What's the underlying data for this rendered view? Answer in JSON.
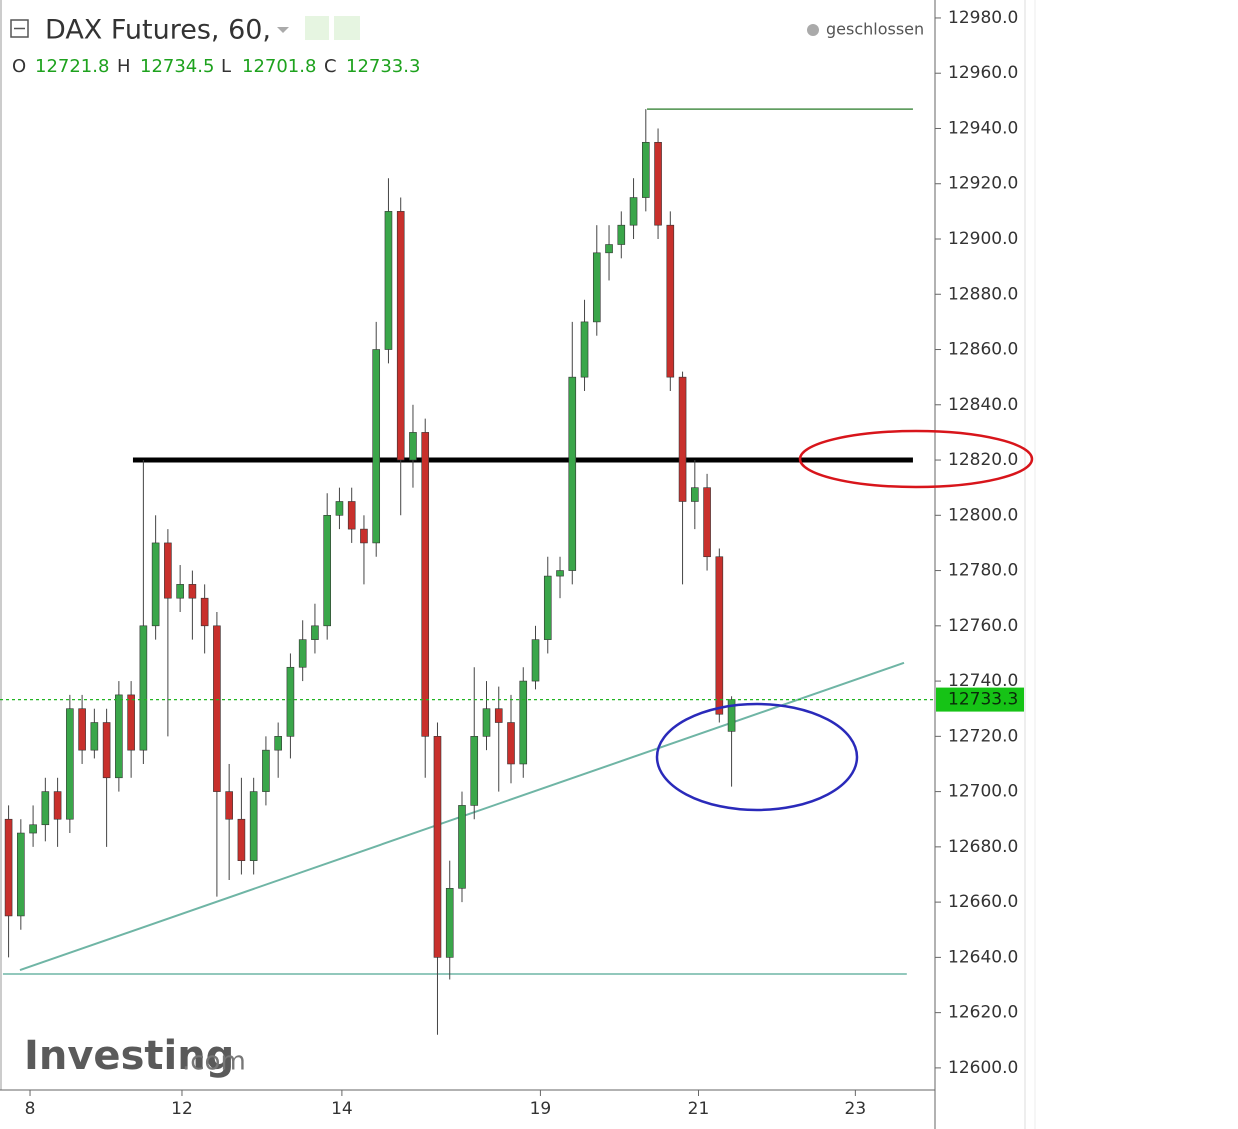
{
  "chart_data": {
    "type": "candlestick",
    "title": "DAX Futures, 60,",
    "status": "geschlossen",
    "watermark": [
      "Investing",
      ".com"
    ],
    "ohlc_labels": [
      "O",
      "H",
      "L",
      "C"
    ],
    "up_color": "#3aa64a",
    "down_color": "#c8302c",
    "x": [
      0,
      1,
      2,
      3,
      4,
      5,
      6,
      7,
      8,
      9,
      10,
      11,
      12,
      13,
      14,
      15,
      16,
      17,
      18,
      19,
      20,
      21,
      22,
      23,
      24,
      25,
      26,
      27,
      28,
      29,
      30,
      31,
      32,
      33,
      34,
      35,
      36,
      37,
      38,
      39,
      40,
      41,
      42,
      43,
      44,
      45,
      46,
      47,
      48,
      49,
      50,
      51,
      52,
      53,
      54,
      55,
      56,
      57,
      58,
      59
    ],
    "open": [
      12690,
      12655,
      12685,
      12688,
      12700,
      12690,
      12730,
      12715,
      12725,
      12705,
      12735,
      12715,
      12760,
      12790,
      12770,
      12775,
      12770,
      12760,
      12700,
      12690,
      12675,
      12700,
      12715,
      12720,
      12745,
      12755,
      12760,
      12800,
      12805,
      12795,
      12790,
      12860,
      12910,
      12820,
      12830,
      12720,
      12640,
      12665,
      12695,
      12720,
      12730,
      12725,
      12710,
      12740,
      12755,
      12778,
      12780,
      12850,
      12870,
      12895,
      12898,
      12905,
      12915,
      12935,
      12905,
      12850,
      12805,
      12810,
      12785,
      12721.8
    ],
    "high": [
      12695,
      12690,
      12695,
      12705,
      12705,
      12735,
      12735,
      12730,
      12730,
      12740,
      12740,
      12820,
      12800,
      12795,
      12782,
      12780,
      12775,
      12765,
      12710,
      12705,
      12705,
      12720,
      12725,
      12750,
      12762,
      12768,
      12808,
      12810,
      12810,
      12800,
      12870,
      12922,
      12915,
      12840,
      12835,
      12725,
      12675,
      12700,
      12745,
      12740,
      12738,
      12735,
      12745,
      12760,
      12785,
      12785,
      12870,
      12878,
      12905,
      12905,
      12910,
      12922,
      12947,
      12940,
      12910,
      12852,
      12820,
      12815,
      12788,
      12734.5
    ],
    "low": [
      12640,
      12650,
      12680,
      12682,
      12680,
      12685,
      12710,
      12712,
      12680,
      12700,
      12705,
      12710,
      12755,
      12720,
      12765,
      12755,
      12750,
      12662,
      12668,
      12670,
      12670,
      12695,
      12705,
      12712,
      12740,
      12750,
      12755,
      12795,
      12790,
      12775,
      12785,
      12855,
      12800,
      12810,
      12705,
      12612,
      12632,
      12660,
      12690,
      12715,
      12700,
      12703,
      12705,
      12737,
      12750,
      12770,
      12775,
      12845,
      12865,
      12885,
      12893,
      12900,
      12910,
      12900,
      12845,
      12775,
      12795,
      12780,
      12725,
      12701.8
    ],
    "close": [
      12655,
      12685,
      12688,
      12700,
      12690,
      12730,
      12715,
      12725,
      12705,
      12735,
      12715,
      12760,
      12790,
      12770,
      12775,
      12770,
      12760,
      12700,
      12690,
      12675,
      12700,
      12715,
      12720,
      12745,
      12755,
      12760,
      12800,
      12805,
      12795,
      12790,
      12860,
      12910,
      12820,
      12830,
      12720,
      12640,
      12665,
      12695,
      12720,
      12730,
      12725,
      12710,
      12740,
      12755,
      12778,
      12780,
      12850,
      12870,
      12895,
      12898,
      12905,
      12915,
      12935,
      12905,
      12850,
      12805,
      12810,
      12785,
      12728,
      12733.3
    ],
    "xlim": [
      -0.7,
      75.6
    ],
    "xticks": [
      {
        "value": 1.75,
        "label": "8"
      },
      {
        "value": 14.15,
        "label": "12"
      },
      {
        "value": 27.2,
        "label": "14"
      },
      {
        "value": 43.4,
        "label": "19"
      },
      {
        "value": 56.3,
        "label": "21"
      },
      {
        "value": 69.1,
        "label": "23"
      }
    ],
    "ylim": [
      12592,
      12986.5
    ],
    "yticks": [
      {
        "value": 12600,
        "label": "12600.0"
      },
      {
        "value": 12620,
        "label": "12620.0"
      },
      {
        "value": 12640,
        "label": "12640.0"
      },
      {
        "value": 12660,
        "label": "12660.0"
      },
      {
        "value": 12680,
        "label": "12680.0"
      },
      {
        "value": 12700,
        "label": "12700.0"
      },
      {
        "value": 12720,
        "label": "12720.0"
      },
      {
        "value": 12740,
        "label": "12740.0"
      },
      {
        "value": 12760,
        "label": "12760.0"
      },
      {
        "value": 12780,
        "label": "12780.0"
      },
      {
        "value": 12800,
        "label": "12800.0"
      },
      {
        "value": 12820,
        "label": "12820.0"
      },
      {
        "value": 12840,
        "label": "12840.0"
      },
      {
        "value": 12860,
        "label": "12860.0"
      },
      {
        "value": 12880,
        "label": "12880.0"
      },
      {
        "value": 12900,
        "label": "12900.0"
      },
      {
        "value": 12920,
        "label": "12920.0"
      },
      {
        "value": 12940,
        "label": "12940.0"
      },
      {
        "value": 12960,
        "label": "12960.0"
      },
      {
        "value": 12980,
        "label": "12980.0"
      }
    ],
    "grid": false,
    "lines": [
      {
        "x": [
          10.15,
          73.8
        ],
        "y": [
          12820,
          12820
        ],
        "color": "#000000",
        "width": 5
      },
      {
        "x": [
          52.1,
          73.8
        ],
        "y": [
          12947,
          12947
        ],
        "color": "#4a8f4a",
        "width": 1.5
      },
      {
        "x": [
          0.93,
          73.07
        ],
        "y": [
          12635.4,
          12746.6
        ],
        "color": "#6fb5a5",
        "width": 2
      },
      {
        "x": [
          -0.46,
          73.3
        ],
        "y": [
          12634,
          12634
        ],
        "color": "#6fb5a5",
        "width": 1.5
      }
    ]
  }
}
